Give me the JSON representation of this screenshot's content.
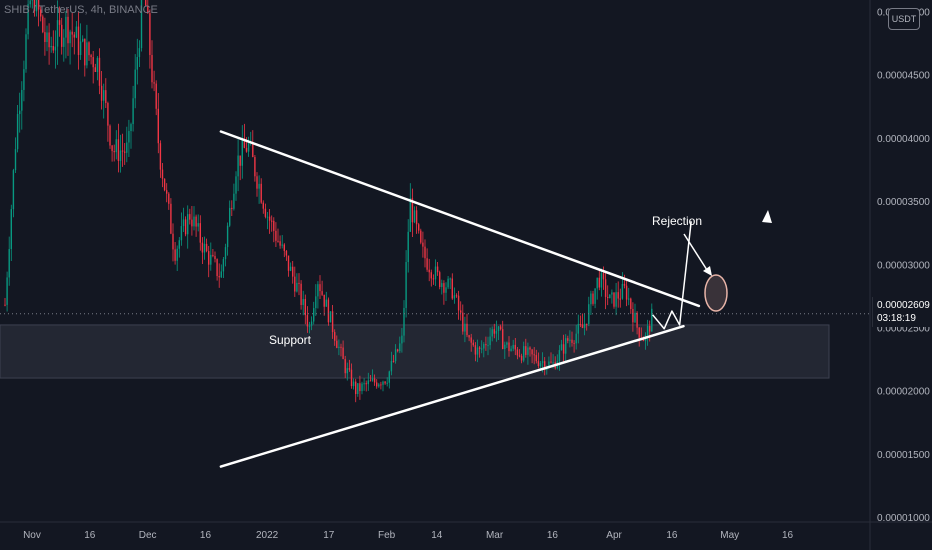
{
  "header": {
    "symbol_title": "SHIB / TetherUS, 4h, BINANCE",
    "currency_badge": "USDT"
  },
  "last_price": {
    "value": "0.00002609",
    "countdown": "03:18:19"
  },
  "chart_data": {
    "type": "candlestick",
    "symbol": "SHIB / TetherUS",
    "timeframe": "4h",
    "exchange": "BINANCE",
    "currency": "USDT",
    "price_axis": {
      "ticks": [
        "0.00005000",
        "0.00004500",
        "0.00004000",
        "0.00003500",
        "0.00003000",
        "0.00002500",
        "0.00002000",
        "0.00001500",
        "0.00001000"
      ],
      "ylim": [
        7.4e-06,
        5.09e-05
      ]
    },
    "time_axis": {
      "ticks": [
        "Nov",
        "16",
        "Dec",
        "16",
        "2022",
        "17",
        "Feb",
        "14",
        "Mar",
        "16",
        "Apr",
        "16",
        "May",
        "16"
      ]
    },
    "price_path": [
      [
        "2021-10-25",
        2.68e-05
      ],
      [
        "2021-10-28",
        4.1e-05
      ],
      [
        "2021-11-01",
        5.2e-05
      ],
      [
        "2021-11-05",
        4.7e-05
      ],
      [
        "2021-11-10",
        4.9e-05
      ],
      [
        "2021-11-14",
        4.7e-05
      ],
      [
        "2021-11-18",
        4.6e-05
      ],
      [
        "2021-11-22",
        3.9e-05
      ],
      [
        "2021-11-26",
        3.9e-05
      ],
      [
        "2021-11-30",
        5.2e-05
      ],
      [
        "2021-12-04",
        3.9e-05
      ],
      [
        "2021-12-08",
        3.1e-05
      ],
      [
        "2021-12-12",
        3.4e-05
      ],
      [
        "2021-12-16",
        3.1e-05
      ],
      [
        "2021-12-20",
        2.9e-05
      ],
      [
        "2021-12-24",
        3.8e-05
      ],
      [
        "2021-12-27",
        3.95e-05
      ],
      [
        "2022-01-01",
        3.4e-05
      ],
      [
        "2022-01-05",
        3.1e-05
      ],
      [
        "2022-01-09",
        2.8e-05
      ],
      [
        "2022-01-12",
        2.5e-05
      ],
      [
        "2022-01-14",
        2.9e-05
      ],
      [
        "2022-01-17",
        2.6e-05
      ],
      [
        "2022-01-21",
        2.2e-05
      ],
      [
        "2022-01-24",
        2e-05
      ],
      [
        "2022-01-27",
        2.05e-05
      ],
      [
        "2022-02-01",
        2.1e-05
      ],
      [
        "2022-02-05",
        2.4e-05
      ],
      [
        "2022-02-07",
        3.5e-05
      ],
      [
        "2022-02-10",
        3.1e-05
      ],
      [
        "2022-02-14",
        2.9e-05
      ],
      [
        "2022-02-18",
        2.8e-05
      ],
      [
        "2022-02-22",
        2.4e-05
      ],
      [
        "2022-02-25",
        2.3e-05
      ],
      [
        "2022-03-01",
        2.5e-05
      ],
      [
        "2022-03-04",
        2.35e-05
      ],
      [
        "2022-03-08",
        2.3e-05
      ],
      [
        "2022-03-12",
        2.25e-05
      ],
      [
        "2022-03-16",
        2.2e-05
      ],
      [
        "2022-03-20",
        2.4e-05
      ],
      [
        "2022-03-24",
        2.5e-05
      ],
      [
        "2022-03-28",
        2.9e-05
      ],
      [
        "2022-03-31",
        2.7e-05
      ],
      [
        "2022-04-04",
        2.8e-05
      ],
      [
        "2022-04-07",
        2.5e-05
      ],
      [
        "2022-04-09",
        2.4e-05
      ],
      [
        "2022-04-11",
        2.6e-05
      ]
    ],
    "trendlines": [
      {
        "name": "upper",
        "from": [
          "2021-12-20",
          4.05e-05
        ],
        "to": [
          "2022-04-23",
          2.67e-05
        ]
      },
      {
        "name": "lower",
        "from": [
          "2021-12-20",
          1.4e-05
        ],
        "to": [
          "2022-04-19",
          2.51e-05
        ]
      }
    ],
    "projection": [
      [
        "2022-04-11",
        2.6e-05
      ],
      [
        "2022-04-14",
        2.49e-05
      ],
      [
        "2022-04-16",
        2.63e-05
      ],
      [
        "2022-04-18",
        2.52e-05
      ],
      [
        "2022-04-21",
        3.34e-05
      ]
    ],
    "annotations": {
      "support_zone": {
        "label": "Support",
        "y_range": [
          2.1e-05,
          2.52e-05
        ]
      },
      "rejection": {
        "label": "Rejection",
        "price": 2.61e-05
      }
    },
    "colors": {
      "up": "#089981",
      "down": "#f23645",
      "lines": "#ffffff",
      "background": "#131722",
      "support_fill": "#2a2e39",
      "rejection_circle": "#e8b4a8"
    },
    "grid": false
  }
}
